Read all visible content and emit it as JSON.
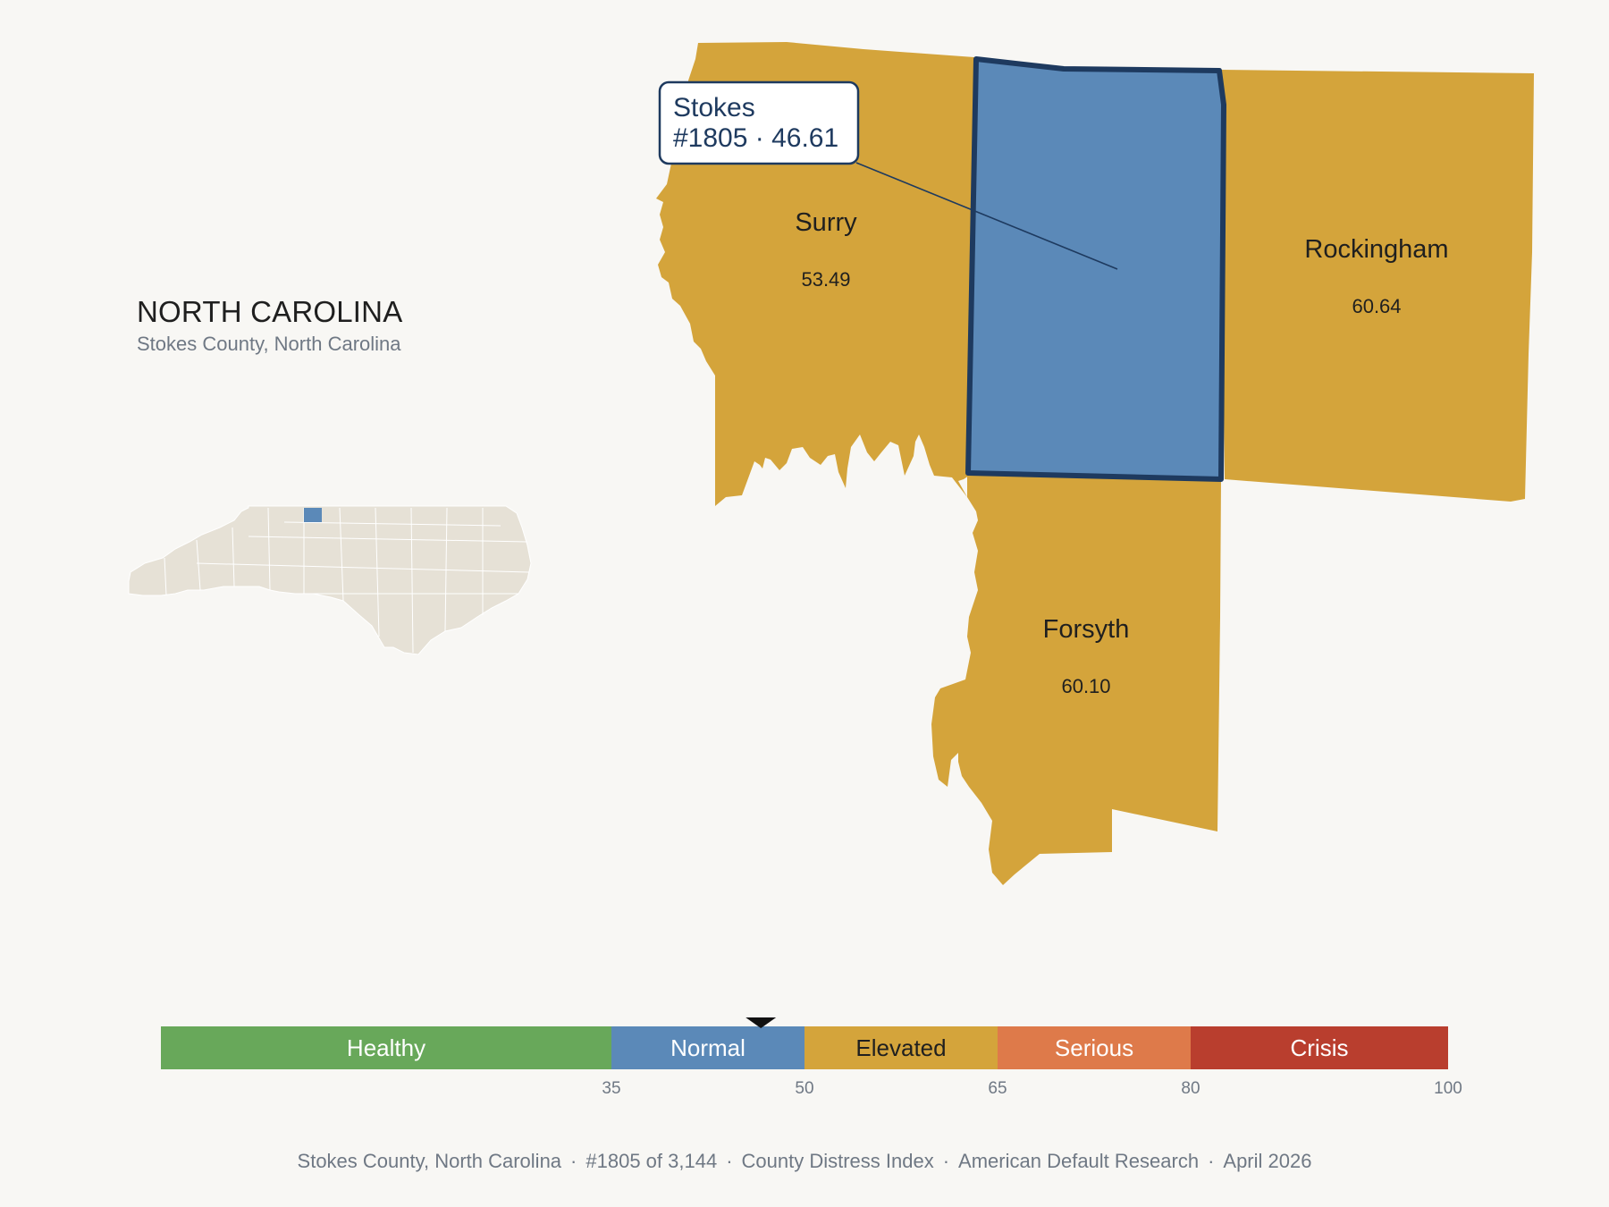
{
  "state": {
    "title": "NORTH CAROLINA",
    "subtitle": "Stokes County, North Carolina"
  },
  "tooltip": {
    "line1": "Stokes",
    "line2": "#1805 · 46.61"
  },
  "counties": {
    "surry": {
      "name": "Surry",
      "value": "53.49"
    },
    "rockingham": {
      "name": "Rockingham",
      "value": "60.64"
    },
    "forsyth": {
      "name": "Forsyth",
      "value": "60.10"
    },
    "stokes": {
      "name": "Stokes",
      "rank": "#1805",
      "value": "46.61"
    }
  },
  "legend": {
    "bands": [
      {
        "label": "Healthy",
        "from": 0,
        "to": 35,
        "color": "#68a85a",
        "text_color": "#ffffff"
      },
      {
        "label": "Normal",
        "from": 35,
        "to": 50,
        "color": "#5b89b8",
        "text_color": "#ffffff"
      },
      {
        "label": "Elevated",
        "from": 50,
        "to": 65,
        "color": "#d4a43b",
        "text_color": "#1f1f1f"
      },
      {
        "label": "Serious",
        "from": 65,
        "to": 80,
        "color": "#de7a4a",
        "text_color": "#ffffff"
      },
      {
        "label": "Crisis",
        "from": 80,
        "to": 100,
        "color": "#b93e2e",
        "text_color": "#ffffff"
      }
    ],
    "ticks": [
      "35",
      "50",
      "65",
      "80",
      "100"
    ],
    "marker_value": 46.61
  },
  "colors": {
    "elevated": "#d4a43b",
    "normal": "#5b89b8",
    "highlight_stroke": "#1e3a5f",
    "inset_land": "#e6e1d6"
  },
  "footer": {
    "county": "Stokes County, North Carolina",
    "rank": "#1805 of 3,144",
    "index": "County Distress Index",
    "source": "American Default Research",
    "date": "April 2026",
    "separator": "·"
  }
}
